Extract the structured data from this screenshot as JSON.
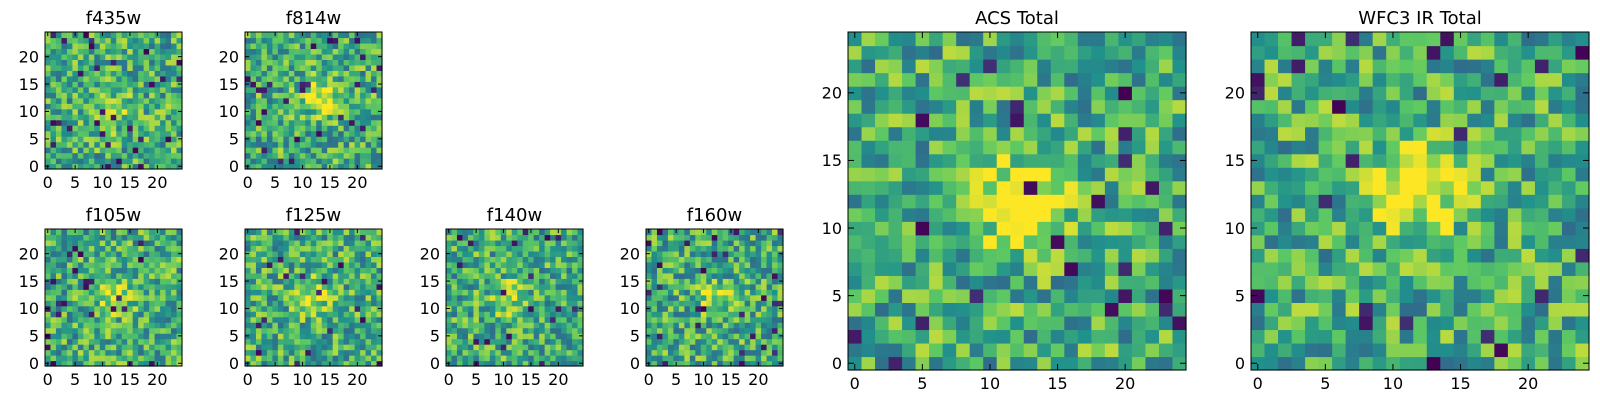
{
  "colors": {
    "colormap": [
      "#440154",
      "#3b528b",
      "#21918c",
      "#5ec962",
      "#fde725"
    ],
    "frame": "#000000",
    "background": "#ffffff"
  },
  "chart_data": [
    {
      "type": "heatmap",
      "title": "f435w",
      "xlabel": "",
      "ylabel": "",
      "xlim": [
        0,
        24
      ],
      "ylim": [
        0,
        24
      ],
      "xticks": [
        0,
        5,
        10,
        15,
        20
      ],
      "yticks": [
        0,
        5,
        10,
        15,
        20
      ],
      "grid_size": [
        25,
        25
      ],
      "colormap": "viridis",
      "seed": 11,
      "blob": {
        "cx": 12,
        "cy": 10,
        "strength": 0.25
      },
      "grid": false
    },
    {
      "type": "heatmap",
      "title": "f814w",
      "xlabel": "",
      "ylabel": "",
      "xlim": [
        0,
        24
      ],
      "ylim": [
        0,
        24
      ],
      "xticks": [
        0,
        5,
        10,
        15,
        20
      ],
      "yticks": [
        0,
        5,
        10,
        15,
        20
      ],
      "grid_size": [
        25,
        25
      ],
      "colormap": "viridis",
      "seed": 23,
      "blob": {
        "cx": 13,
        "cy": 13,
        "strength": 0.4
      },
      "grid": false
    },
    {
      "type": "heatmap",
      "title": "f105w",
      "xlabel": "",
      "ylabel": "",
      "xlim": [
        0,
        24
      ],
      "ylim": [
        0,
        24
      ],
      "xticks": [
        0,
        5,
        10,
        15,
        20
      ],
      "yticks": [
        0,
        5,
        10,
        15,
        20
      ],
      "grid_size": [
        25,
        25
      ],
      "colormap": "viridis",
      "seed": 37,
      "blob": {
        "cx": 12,
        "cy": 12,
        "strength": 0.3
      },
      "grid": false
    },
    {
      "type": "heatmap",
      "title": "f125w",
      "xlabel": "",
      "ylabel": "",
      "xlim": [
        0,
        24
      ],
      "ylim": [
        0,
        24
      ],
      "xticks": [
        0,
        5,
        10,
        15,
        20
      ],
      "yticks": [
        0,
        5,
        10,
        15,
        20
      ],
      "grid_size": [
        25,
        25
      ],
      "colormap": "viridis",
      "seed": 41,
      "blob": {
        "cx": 12,
        "cy": 12,
        "strength": 0.3
      },
      "grid": false
    },
    {
      "type": "heatmap",
      "title": "f140w",
      "xlabel": "",
      "ylabel": "",
      "xlim": [
        0,
        24
      ],
      "ylim": [
        0,
        24
      ],
      "xticks": [
        0,
        5,
        10,
        15,
        20
      ],
      "yticks": [
        0,
        5,
        10,
        15,
        20
      ],
      "grid_size": [
        25,
        25
      ],
      "colormap": "viridis",
      "seed": 53,
      "blob": {
        "cx": 11,
        "cy": 12,
        "strength": 0.25
      },
      "grid": false
    },
    {
      "type": "heatmap",
      "title": "f160w",
      "xlabel": "",
      "ylabel": "",
      "xlim": [
        0,
        24
      ],
      "ylim": [
        0,
        24
      ],
      "xticks": [
        0,
        5,
        10,
        15,
        20
      ],
      "yticks": [
        0,
        5,
        10,
        15,
        20
      ],
      "grid_size": [
        25,
        25
      ],
      "colormap": "viridis",
      "seed": 67,
      "blob": {
        "cx": 12,
        "cy": 12,
        "strength": 0.25
      },
      "grid": false
    },
    {
      "type": "heatmap",
      "title": "ACS Total",
      "xlabel": "",
      "ylabel": "",
      "xlim": [
        0,
        24
      ],
      "ylim": [
        0,
        24
      ],
      "xticks": [
        0,
        5,
        10,
        15,
        20
      ],
      "yticks": [
        0,
        5,
        10,
        15,
        20
      ],
      "grid_size": [
        25,
        25
      ],
      "colormap": "viridis",
      "seed": 79,
      "blob": {
        "cx": 12,
        "cy": 12,
        "strength": 0.5
      },
      "grid": false
    },
    {
      "type": "heatmap",
      "title": "WFC3 IR Total",
      "xlabel": "",
      "ylabel": "",
      "xlim": [
        0,
        24
      ],
      "ylim": [
        0,
        24
      ],
      "xticks": [
        0,
        5,
        10,
        15,
        20
      ],
      "yticks": [
        0,
        5,
        10,
        15,
        20
      ],
      "grid_size": [
        25,
        25
      ],
      "colormap": "viridis",
      "seed": 97,
      "blob": {
        "cx": 12,
        "cy": 13,
        "strength": 0.55
      },
      "grid": false
    }
  ]
}
